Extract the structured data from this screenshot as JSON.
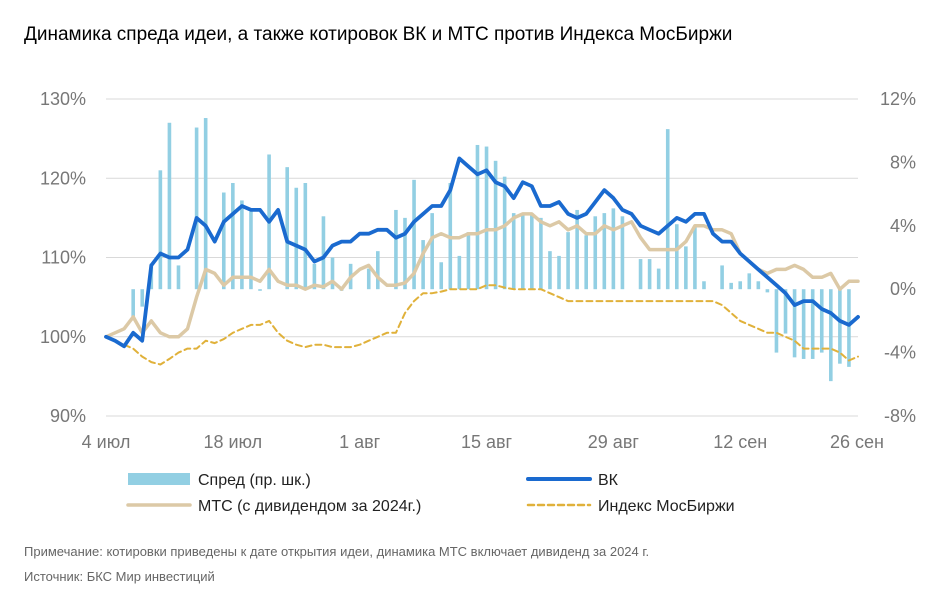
{
  "chart_data": {
    "type": "bar+line",
    "title": "Динамика спреда идеи, а также котировок ВК и МТС против Индекса МосБиржи",
    "x_ticks": [
      "4 июл",
      "18 июл",
      "1 авг",
      "15 авг",
      "29 авг",
      "12 сен",
      "26 сен"
    ],
    "y_left_ticks": [
      "90%",
      "100%",
      "110%",
      "120%",
      "130%"
    ],
    "y_left_range": [
      90,
      130
    ],
    "y_right_ticks": [
      "-8%",
      "-4%",
      "0%",
      "4%",
      "8%",
      "12%"
    ],
    "y_right_range": [
      -8,
      12
    ],
    "x_range_days": [
      0,
      83
    ],
    "legend": {
      "spread": "Спред (пр. шк.)",
      "vk": "ВК",
      "mts": "МТС (с дивидендом за 2024г.)",
      "moex": "Индекс МосБиржи"
    },
    "colors": {
      "spread": "#92CFE3",
      "vk": "#1A6ACF",
      "mts": "#DCC9A6",
      "moex": "#E0B13A",
      "grid": "#D9D9D9"
    },
    "series": [
      {
        "key": "spread",
        "name": "Спред (пр. шк.)",
        "axis": "right",
        "type": "bar",
        "x": [
          3,
          4,
          5,
          6,
          7,
          8,
          10,
          11,
          13,
          14,
          15,
          16,
          17,
          18,
          20,
          21,
          22,
          23,
          24,
          25,
          26,
          27,
          29,
          30,
          32,
          33,
          34,
          35,
          36,
          37,
          38,
          39,
          40,
          41,
          42,
          43,
          44,
          45,
          46,
          47,
          48,
          49,
          50,
          51,
          52,
          53,
          54,
          55,
          56,
          57,
          59,
          60,
          61,
          62,
          63,
          64,
          65,
          66,
          68,
          69,
          70,
          71,
          72,
          73,
          74,
          75,
          76,
          77,
          78,
          79,
          80,
          81,
          82
        ],
        "values": [
          -1.8,
          -1.1,
          1.6,
          7.5,
          10.5,
          1.5,
          10.2,
          10.8,
          6.1,
          6.7,
          5.6,
          4.9,
          -0.1,
          8.5,
          7.7,
          6.4,
          6.7,
          1.6,
          4.6,
          2.0,
          -0.1,
          1.6,
          1.3,
          2.4,
          5.0,
          4.5,
          6.9,
          3.1,
          4.8,
          1.7,
          6.7,
          2.1,
          3.6,
          9.1,
          9.0,
          8.1,
          7.1,
          4.8,
          4.8,
          4.8,
          4.5,
          2.4,
          2.1,
          3.6,
          5.0,
          3.4,
          4.6,
          4.8,
          5.1,
          4.6,
          1.9,
          1.9,
          1.3,
          10.1,
          4.1,
          2.7,
          4.0,
          0.5,
          1.5,
          0.4,
          0.5,
          1.0,
          0.5,
          -0.2,
          -4.0,
          -2.8,
          -4.3,
          -4.4,
          -4.4,
          -4.0,
          -5.8,
          -4.7,
          -4.9
        ]
      },
      {
        "key": "mts",
        "name": "МТС (с дивидендом за 2024г.)",
        "axis": "left",
        "type": "line",
        "x": [
          0,
          1,
          2,
          3,
          4,
          5,
          6,
          7,
          8,
          9,
          10,
          11,
          12,
          13,
          14,
          15,
          16,
          17,
          18,
          19,
          20,
          21,
          22,
          23,
          24,
          25,
          26,
          27,
          28,
          29,
          30,
          31,
          32,
          33,
          34,
          35,
          36,
          37,
          38,
          39,
          40,
          41,
          42,
          43,
          44,
          45,
          46,
          47,
          48,
          49,
          50,
          51,
          52,
          53,
          54,
          55,
          56,
          57,
          58,
          59,
          60,
          61,
          62,
          63,
          64,
          65,
          66,
          67,
          68,
          69,
          70,
          71,
          72,
          73,
          74,
          75,
          76,
          77,
          78,
          79,
          80,
          81,
          82,
          83
        ],
        "values": [
          100,
          100.5,
          101,
          102.5,
          100.5,
          102,
          100.5,
          100,
          100,
          101,
          105,
          108.5,
          108,
          106.5,
          107.5,
          107.5,
          107.5,
          107,
          108.5,
          107,
          106.5,
          106.5,
          106,
          106.5,
          106.3,
          107,
          106,
          107.5,
          108.5,
          109,
          107.5,
          106.5,
          106.5,
          106.8,
          108,
          110.5,
          112.5,
          113,
          112.5,
          112.5,
          113,
          113,
          113.5,
          113.5,
          114,
          115,
          115.5,
          115.5,
          114.5,
          114,
          114.5,
          113.5,
          114,
          113,
          113,
          114,
          113.5,
          114,
          114.5,
          112.5,
          111,
          111,
          111,
          111,
          112,
          114,
          114,
          113.5,
          113.5,
          113,
          110.5,
          109.5,
          108.5,
          108,
          108.5,
          108.5,
          109,
          108.5,
          107.5,
          107.5,
          108,
          106,
          107,
          107
        ]
      },
      {
        "key": "vk",
        "name": "ВК",
        "axis": "left",
        "type": "line",
        "x": [
          0,
          1,
          2,
          3,
          4,
          5,
          6,
          7,
          8,
          9,
          10,
          11,
          12,
          13,
          14,
          15,
          16,
          17,
          18,
          19,
          20,
          21,
          22,
          23,
          24,
          25,
          26,
          27,
          28,
          29,
          30,
          31,
          32,
          33,
          34,
          35,
          36,
          37,
          38,
          39,
          40,
          41,
          42,
          43,
          44,
          45,
          46,
          47,
          48,
          49,
          50,
          51,
          52,
          53,
          54,
          55,
          56,
          57,
          58,
          59,
          60,
          61,
          62,
          63,
          64,
          65,
          66,
          67,
          68,
          69,
          70,
          71,
          72,
          73,
          74,
          75,
          76,
          77,
          78,
          79,
          80,
          81,
          82,
          83
        ],
        "values": [
          100,
          99.5,
          98.8,
          100.5,
          99.5,
          109,
          110.5,
          110,
          110,
          111,
          115,
          114,
          112,
          114.5,
          115.5,
          116.5,
          116,
          116,
          114.5,
          116,
          112,
          111.5,
          111,
          109.5,
          110,
          111.5,
          112,
          112,
          113,
          113,
          113.5,
          113.5,
          112.5,
          113,
          114.5,
          115.5,
          116.5,
          116.5,
          118.5,
          122.5,
          121.5,
          120.5,
          121,
          119.5,
          119,
          117.5,
          119.5,
          119,
          116.5,
          116.5,
          117,
          115.5,
          115,
          115.5,
          117,
          118.5,
          117.5,
          116,
          115.5,
          114,
          113.5,
          113,
          114,
          115,
          114.5,
          115.5,
          115.5,
          113,
          112,
          112,
          110.5,
          109.5,
          108.5,
          107.5,
          106.5,
          105.5,
          104,
          104.5,
          104.5,
          103.5,
          103,
          102,
          101.5,
          102.5
        ]
      },
      {
        "key": "moex",
        "name": "Индекс МосБиржи",
        "axis": "left",
        "type": "line",
        "x": [
          0,
          1,
          2,
          3,
          4,
          5,
          6,
          7,
          8,
          9,
          10,
          11,
          12,
          13,
          14,
          15,
          16,
          17,
          18,
          19,
          20,
          21,
          22,
          23,
          24,
          25,
          26,
          27,
          28,
          29,
          30,
          31,
          32,
          33,
          34,
          35,
          36,
          37,
          38,
          39,
          40,
          41,
          42,
          43,
          44,
          45,
          46,
          47,
          48,
          49,
          50,
          51,
          52,
          53,
          54,
          55,
          56,
          57,
          58,
          59,
          60,
          61,
          62,
          63,
          64,
          65,
          66,
          67,
          68,
          69,
          70,
          71,
          72,
          73,
          74,
          75,
          76,
          77,
          78,
          79,
          80,
          81,
          82,
          83
        ],
        "values": [
          100,
          99.5,
          99,
          98.5,
          97.5,
          96.8,
          96.5,
          97.2,
          98,
          98.5,
          98.5,
          99.5,
          99.2,
          99.7,
          100.5,
          101,
          101.5,
          101.5,
          102,
          100.5,
          99.5,
          99,
          98.7,
          99,
          99,
          98.7,
          98.7,
          98.7,
          99,
          99.5,
          100,
          100.5,
          100.5,
          103,
          104.5,
          105.5,
          105.5,
          105.7,
          106,
          106,
          106,
          106,
          106.5,
          106.5,
          106.2,
          106,
          106,
          106,
          106,
          105.5,
          105,
          104.5,
          104.5,
          104.5,
          104.5,
          104.5,
          104.5,
          104.5,
          104.5,
          104.5,
          104.5,
          104.5,
          104.5,
          104.5,
          104.5,
          104.5,
          104.5,
          104.5,
          104,
          103,
          102,
          101.5,
          101,
          100.5,
          100.5,
          100,
          99.5,
          98.5,
          98.5,
          98.5,
          98.5,
          98,
          97,
          97.5
        ]
      }
    ]
  },
  "notes": {
    "note": "Примечание: котировки приведены к дате открытия идеи, динамика МТС включает дивиденд за 2024 г.",
    "source": "Источник: БКС Мир инвестиций"
  }
}
